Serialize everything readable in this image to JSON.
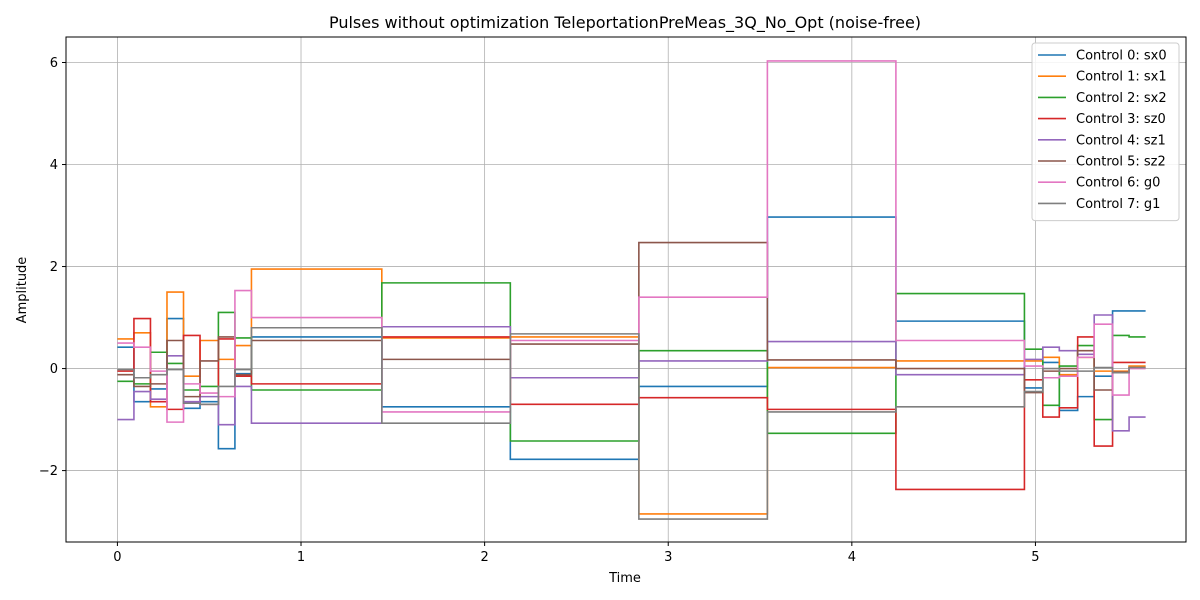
{
  "chart_data": {
    "type": "line",
    "step": "post",
    "title": "Pulses without optimization TeleportationPreMeas_3Q_No_Opt (noise-free)",
    "xlabel": "Time",
    "ylabel": "Amplitude",
    "xlim": [
      -0.28,
      5.82
    ],
    "ylim": [
      -3.4,
      6.5
    ],
    "xticks": [
      0,
      1,
      2,
      3,
      4,
      5
    ],
    "yticks": [
      -2,
      0,
      2,
      4,
      6
    ],
    "grid": true,
    "legend": "top-right",
    "x": [
      0,
      0.09,
      0.18,
      0.27,
      0.36,
      0.45,
      0.55,
      0.64,
      0.73,
      1.44,
      2.14,
      2.84,
      3.54,
      4.24,
      4.94,
      5.04,
      5.13,
      5.23,
      5.32,
      5.42,
      5.51
    ],
    "x_end": 5.6,
    "series": [
      {
        "name": "Control 0: sx0",
        "color": "#1f77b4",
        "values": [
          0.42,
          -0.65,
          -0.4,
          0.98,
          -0.78,
          -0.65,
          -1.57,
          -0.1,
          0.62,
          -0.75,
          -1.78,
          -0.35,
          2.97,
          0.93,
          -0.38,
          0.12,
          -0.82,
          -0.55,
          -0.15,
          1.13,
          1.13
        ]
      },
      {
        "name": "Control 1: sx1",
        "color": "#ff7f0e",
        "values": [
          0.58,
          0.7,
          -0.75,
          1.5,
          -0.15,
          0.55,
          0.18,
          0.45,
          1.95,
          0.6,
          0.62,
          -2.85,
          0.02,
          0.15,
          0.15,
          0.22,
          -0.12,
          0.22,
          -0.05,
          -0.05,
          0.05
        ]
      },
      {
        "name": "Control 2: sx2",
        "color": "#2ca02c",
        "values": [
          -0.25,
          -0.3,
          0.32,
          0.1,
          -0.42,
          -0.35,
          1.1,
          0.6,
          -0.42,
          1.68,
          -1.42,
          0.35,
          -1.27,
          1.47,
          0.38,
          -0.72,
          0.05,
          0.45,
          -1.0,
          0.65,
          0.62
        ]
      },
      {
        "name": "Control 3: sz0",
        "color": "#d62728",
        "values": [
          -0.05,
          0.98,
          -0.65,
          -0.8,
          0.65,
          -0.7,
          0.58,
          -0.15,
          -0.3,
          0.62,
          -0.7,
          -0.57,
          -0.8,
          -2.37,
          -0.22,
          -0.95,
          -0.77,
          0.62,
          -1.52,
          0.12,
          0.12
        ]
      },
      {
        "name": "Control 4: sz1",
        "color": "#9467bd",
        "values": [
          -1.0,
          -0.45,
          -0.6,
          0.25,
          -0.65,
          -0.55,
          -1.1,
          -0.35,
          -1.07,
          0.82,
          -0.18,
          0.15,
          0.53,
          -0.12,
          0.18,
          0.42,
          0.35,
          0.28,
          1.05,
          -1.22,
          -0.95
        ]
      },
      {
        "name": "Control 5: sz2",
        "color": "#8c564b",
        "values": [
          -0.12,
          -0.35,
          -0.3,
          0.55,
          -0.55,
          0.15,
          0.62,
          -0.12,
          0.55,
          0.18,
          0.48,
          2.47,
          0.17,
          0.0,
          -0.47,
          -0.05,
          0.0,
          0.35,
          -0.42,
          -0.07,
          0.02
        ]
      },
      {
        "name": "Control 6: g0",
        "color": "#e377c2",
        "values": [
          0.5,
          0.42,
          -0.05,
          -1.05,
          -0.3,
          -0.48,
          -0.55,
          1.53,
          1.0,
          -0.85,
          0.55,
          1.4,
          6.03,
          0.55,
          0.05,
          -0.18,
          -0.15,
          0.22,
          0.87,
          -0.52,
          0.0
        ]
      },
      {
        "name": "Control 7: g1",
        "color": "#7f7f7f",
        "values": [
          -0.02,
          -0.18,
          -0.12,
          -0.02,
          -0.68,
          -0.7,
          -0.35,
          -0.02,
          0.8,
          -1.07,
          0.68,
          -2.95,
          -0.85,
          -0.75,
          -0.45,
          0.0,
          -0.05,
          -0.05,
          0.02,
          -0.08,
          0.02
        ]
      }
    ]
  }
}
